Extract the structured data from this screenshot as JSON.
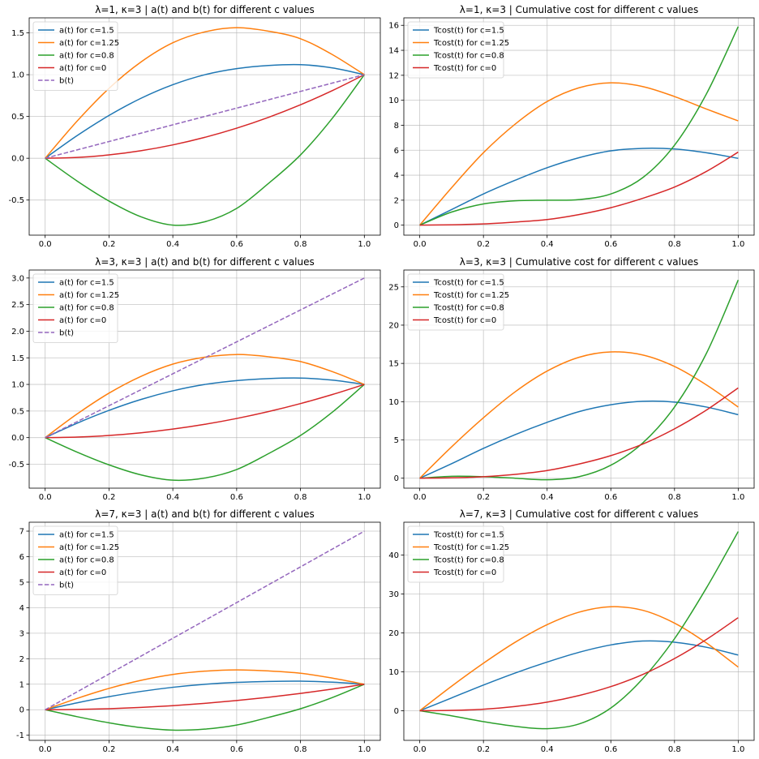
{
  "chart_data": [
    {
      "type": "line",
      "title": "λ=1, κ=3 | a(t) and b(t) for different c values",
      "xlabel": "",
      "ylabel": "",
      "xlim": [
        -0.05,
        1.05
      ],
      "ylim": [
        -0.92,
        1.68
      ],
      "xticks": [
        "0.0",
        "0.2",
        "0.4",
        "0.6",
        "0.8",
        "1.0"
      ],
      "yticks": [
        "-0.5",
        "0.0",
        "0.5",
        "1.0",
        "1.5"
      ],
      "grid": true,
      "legend": "top-left",
      "x": [
        0,
        0.1,
        0.2,
        0.3,
        0.4,
        0.5,
        0.6,
        0.7,
        0.8,
        0.9,
        1.0
      ],
      "series": [
        {
          "name": "a(t) for c=1.5",
          "color": "#1f77b4",
          "dashed": false,
          "values": [
            0,
            0.271,
            0.512,
            0.717,
            0.88,
            0.999,
            1.072,
            1.11,
            1.12,
            1.081,
            1.0
          ]
        },
        {
          "name": "a(t) for c=1.25",
          "color": "#ff7f0e",
          "dashed": false,
          "values": [
            0,
            0.444,
            0.836,
            1.151,
            1.382,
            1.512,
            1.562,
            1.52,
            1.43,
            1.24,
            1.0
          ]
        },
        {
          "name": "a(t) for c=0.8",
          "color": "#2ca02c",
          "dashed": false,
          "values": [
            0,
            -0.272,
            -0.512,
            -0.7,
            -0.8,
            -0.76,
            -0.6,
            -0.3,
            0.04,
            0.48,
            1.0
          ]
        },
        {
          "name": "a(t) for c=0",
          "color": "#d62728",
          "dashed": false,
          "values": [
            0,
            0.01,
            0.04,
            0.09,
            0.16,
            0.25,
            0.36,
            0.49,
            0.64,
            0.81,
            1.0
          ]
        },
        {
          "name": "b(t)",
          "color": "#9467bd",
          "dashed": true,
          "values": [
            0,
            0.1,
            0.2,
            0.3,
            0.4,
            0.5,
            0.6,
            0.7,
            0.8,
            0.9,
            1.0
          ]
        }
      ]
    },
    {
      "type": "line",
      "title": "λ=1, κ=3 | Cumulative cost for different c values",
      "xlabel": "",
      "ylabel": "",
      "xlim": [
        -0.05,
        1.05
      ],
      "ylim": [
        -0.8,
        16.6
      ],
      "xticks": [
        "0.0",
        "0.2",
        "0.4",
        "0.6",
        "0.8",
        "1.0"
      ],
      "yticks": [
        "0",
        "2",
        "4",
        "6",
        "8",
        "10",
        "12",
        "14",
        "16"
      ],
      "grid": true,
      "legend": "top-left",
      "x": [
        0,
        0.1,
        0.2,
        0.3,
        0.4,
        0.5,
        0.6,
        0.7,
        0.8,
        0.9,
        1.0
      ],
      "series": [
        {
          "name": "Tcost(t) for c=1.5",
          "color": "#1f77b4",
          "dashed": false,
          "values": [
            0,
            1.25,
            2.5,
            3.6,
            4.6,
            5.4,
            5.95,
            6.15,
            6.1,
            5.8,
            5.35
          ]
        },
        {
          "name": "Tcost(t) for c=1.25",
          "color": "#ff7f0e",
          "dashed": false,
          "values": [
            0,
            3.0,
            5.8,
            8.1,
            9.9,
            11.0,
            11.4,
            11.1,
            10.3,
            9.3,
            8.35
          ]
        },
        {
          "name": "Tcost(t) for c=0.8",
          "color": "#2ca02c",
          "dashed": false,
          "values": [
            0,
            1.05,
            1.7,
            1.95,
            2.0,
            2.05,
            2.5,
            3.8,
            6.4,
            10.5,
            15.9
          ]
        },
        {
          "name": "Tcost(t) for c=0",
          "color": "#d62728",
          "dashed": false,
          "values": [
            0,
            0.03,
            0.1,
            0.25,
            0.45,
            0.85,
            1.4,
            2.15,
            3.05,
            4.3,
            5.85
          ]
        }
      ]
    },
    {
      "type": "line",
      "title": "λ=3, κ=3 | a(t) and b(t) for different c values",
      "xlabel": "",
      "ylabel": "",
      "xlim": [
        -0.05,
        1.05
      ],
      "ylim": [
        -0.95,
        3.15
      ],
      "xticks": [
        "0.0",
        "0.2",
        "0.4",
        "0.6",
        "0.8",
        "1.0"
      ],
      "yticks": [
        "-0.5",
        "0.0",
        "0.5",
        "1.0",
        "1.5",
        "2.0",
        "2.5",
        "3.0"
      ],
      "grid": true,
      "legend": "top-left",
      "x": [
        0,
        0.1,
        0.2,
        0.3,
        0.4,
        0.5,
        0.6,
        0.7,
        0.8,
        0.9,
        1.0
      ],
      "series": [
        {
          "name": "a(t) for c=1.5",
          "color": "#1f77b4",
          "dashed": false,
          "values": [
            0,
            0.271,
            0.512,
            0.717,
            0.88,
            0.999,
            1.072,
            1.11,
            1.12,
            1.081,
            1.0
          ]
        },
        {
          "name": "a(t) for c=1.25",
          "color": "#ff7f0e",
          "dashed": false,
          "values": [
            0,
            0.444,
            0.836,
            1.151,
            1.382,
            1.512,
            1.562,
            1.52,
            1.43,
            1.24,
            1.0
          ]
        },
        {
          "name": "a(t) for c=0.8",
          "color": "#2ca02c",
          "dashed": false,
          "values": [
            0,
            -0.272,
            -0.512,
            -0.7,
            -0.8,
            -0.76,
            -0.6,
            -0.3,
            0.04,
            0.48,
            1.0
          ]
        },
        {
          "name": "a(t) for c=0",
          "color": "#d62728",
          "dashed": false,
          "values": [
            0,
            0.01,
            0.04,
            0.09,
            0.16,
            0.25,
            0.36,
            0.49,
            0.64,
            0.81,
            1.0
          ]
        },
        {
          "name": "b(t)",
          "color": "#9467bd",
          "dashed": true,
          "values": [
            0,
            0.3,
            0.6,
            0.9,
            1.2,
            1.5,
            1.8,
            2.1,
            2.4,
            2.7,
            3.0
          ]
        }
      ]
    },
    {
      "type": "line",
      "title": "λ=3, κ=3 | Cumulative cost for different c values",
      "xlabel": "",
      "ylabel": "",
      "xlim": [
        -0.05,
        1.05
      ],
      "ylim": [
        -1.3,
        27.2
      ],
      "xticks": [
        "0.0",
        "0.2",
        "0.4",
        "0.6",
        "0.8",
        "1.0"
      ],
      "yticks": [
        "0",
        "5",
        "10",
        "15",
        "20",
        "25"
      ],
      "grid": true,
      "legend": "top-left",
      "x": [
        0,
        0.1,
        0.2,
        0.3,
        0.4,
        0.5,
        0.6,
        0.7,
        0.8,
        0.9,
        1.0
      ],
      "series": [
        {
          "name": "Tcost(t) for c=1.5",
          "color": "#1f77b4",
          "dashed": false,
          "values": [
            0,
            1.9,
            3.9,
            5.7,
            7.3,
            8.7,
            9.6,
            10.05,
            9.95,
            9.3,
            8.3
          ]
        },
        {
          "name": "Tcost(t) for c=1.25",
          "color": "#ff7f0e",
          "dashed": false,
          "values": [
            0,
            4.1,
            7.9,
            11.3,
            14.0,
            15.8,
            16.5,
            16.1,
            14.6,
            12.2,
            9.3
          ]
        },
        {
          "name": "Tcost(t) for c=0.8",
          "color": "#2ca02c",
          "dashed": false,
          "values": [
            0,
            0.25,
            0.2,
            0.0,
            -0.2,
            0.2,
            1.7,
            4.6,
            9.3,
            16.3,
            25.9
          ]
        },
        {
          "name": "Tcost(t) for c=0",
          "color": "#d62728",
          "dashed": false,
          "values": [
            0,
            0.05,
            0.2,
            0.5,
            1.0,
            1.85,
            2.95,
            4.45,
            6.45,
            8.9,
            11.8
          ]
        }
      ]
    },
    {
      "type": "line",
      "title": "λ=7, κ=3 | a(t) and b(t) for different c values",
      "xlabel": "",
      "ylabel": "",
      "xlim": [
        -0.05,
        1.05
      ],
      "ylim": [
        -1.2,
        7.35
      ],
      "xticks": [
        "0.0",
        "0.2",
        "0.4",
        "0.6",
        "0.8",
        "1.0"
      ],
      "yticks": [
        "-1",
        "0",
        "1",
        "2",
        "3",
        "4",
        "5",
        "6",
        "7"
      ],
      "grid": true,
      "legend": "top-left",
      "x": [
        0,
        0.1,
        0.2,
        0.3,
        0.4,
        0.5,
        0.6,
        0.7,
        0.8,
        0.9,
        1.0
      ],
      "series": [
        {
          "name": "a(t) for c=1.5",
          "color": "#1f77b4",
          "dashed": false,
          "values": [
            0,
            0.271,
            0.512,
            0.717,
            0.88,
            0.999,
            1.072,
            1.11,
            1.12,
            1.081,
            1.0
          ]
        },
        {
          "name": "a(t) for c=1.25",
          "color": "#ff7f0e",
          "dashed": false,
          "values": [
            0,
            0.444,
            0.836,
            1.151,
            1.382,
            1.512,
            1.562,
            1.52,
            1.43,
            1.24,
            1.0
          ]
        },
        {
          "name": "a(t) for c=0.8",
          "color": "#2ca02c",
          "dashed": false,
          "values": [
            0,
            -0.272,
            -0.512,
            -0.7,
            -0.8,
            -0.76,
            -0.6,
            -0.3,
            0.04,
            0.48,
            1.0
          ]
        },
        {
          "name": "a(t) for c=0",
          "color": "#d62728",
          "dashed": false,
          "values": [
            0,
            0.01,
            0.04,
            0.09,
            0.16,
            0.25,
            0.36,
            0.49,
            0.64,
            0.81,
            1.0
          ]
        },
        {
          "name": "b(t)",
          "color": "#9467bd",
          "dashed": true,
          "values": [
            0,
            0.7,
            1.4,
            2.1,
            2.8,
            3.5,
            4.2,
            4.9,
            5.6,
            6.3,
            7.0
          ]
        }
      ]
    },
    {
      "type": "line",
      "title": "λ=7, κ=3 | Cumulative cost for different c values",
      "xlabel": "",
      "ylabel": "",
      "xlim": [
        -0.05,
        1.05
      ],
      "ylim": [
        -7.6,
        48.4
      ],
      "xticks": [
        "0.0",
        "0.2",
        "0.4",
        "0.6",
        "0.8",
        "1.0"
      ],
      "yticks": [
        "0",
        "10",
        "20",
        "30",
        "40"
      ],
      "grid": true,
      "legend": "top-left",
      "x": [
        0,
        0.1,
        0.2,
        0.3,
        0.4,
        0.5,
        0.6,
        0.7,
        0.8,
        0.9,
        1.0
      ],
      "series": [
        {
          "name": "Tcost(t) for c=1.5",
          "color": "#1f77b4",
          "dashed": false,
          "values": [
            0,
            3.3,
            6.6,
            9.7,
            12.5,
            15.0,
            16.9,
            17.9,
            17.6,
            16.3,
            14.3
          ]
        },
        {
          "name": "Tcost(t) for c=1.25",
          "color": "#ff7f0e",
          "dashed": false,
          "values": [
            0,
            6.3,
            12.2,
            17.6,
            22.1,
            25.3,
            26.7,
            25.8,
            22.5,
            17.4,
            11.2
          ]
        },
        {
          "name": "Tcost(t) for c=0.8",
          "color": "#2ca02c",
          "dashed": false,
          "values": [
            0,
            -1.3,
            -2.8,
            -4.0,
            -4.6,
            -3.4,
            0.7,
            8.2,
            18.5,
            31.5,
            46.0
          ]
        },
        {
          "name": "Tcost(t) for c=0",
          "color": "#d62728",
          "dashed": false,
          "values": [
            0,
            0.1,
            0.4,
            1.1,
            2.2,
            3.9,
            6.2,
            9.3,
            13.4,
            18.3,
            23.9
          ]
        }
      ]
    }
  ]
}
